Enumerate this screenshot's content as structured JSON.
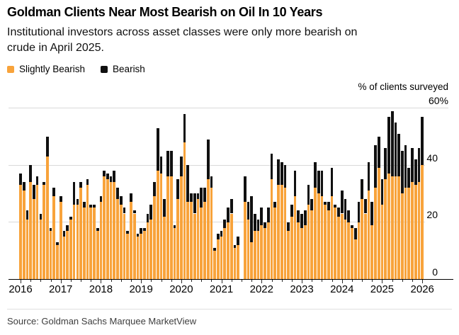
{
  "header": {
    "title": "Goldman Clients Near Most Bearish on Oil In 10 Years",
    "subtitle_line1": "Institutional investors across asset classes were only more bearish on",
    "subtitle_line2": "crude in April 2025."
  },
  "legend": {
    "items": [
      {
        "label": "Slightly Bearish",
        "color": "#F8A33B"
      },
      {
        "label": "Bearish",
        "color": "#101010"
      }
    ]
  },
  "axis": {
    "unit_label": "% of clients surveyed",
    "y_labels": [
      "60%",
      "40",
      "20",
      "0"
    ],
    "y_values": [
      60,
      40,
      20,
      0
    ],
    "years": [
      2016,
      2017,
      2018,
      2019,
      2020,
      2021,
      2022,
      2023,
      2024,
      2025,
      2026
    ]
  },
  "source": "Source: Goldman Sachs Marquee MarketView",
  "chart_data": {
    "type": "bar",
    "stacked": true,
    "title": "Goldman Clients Near Most Bearish on Oil In 10 Years",
    "unit": "% of clients surveyed",
    "ylim": [
      0,
      60
    ],
    "grid": true,
    "legend_position": "top-left",
    "start_month": "2016-01",
    "end_month": "2026-01",
    "missing_months": [
      "2021-07"
    ],
    "series": [
      {
        "name": "Slightly Bearish",
        "color": "#F8A33B",
        "values": [
          33,
          31,
          21,
          34,
          28,
          33,
          21,
          33,
          43,
          17,
          29,
          12,
          27,
          15,
          17,
          21,
          26,
          26,
          32,
          25,
          33,
          25,
          25,
          17,
          27,
          36,
          35,
          34,
          34,
          28,
          26,
          23,
          16,
          27,
          23,
          15,
          16,
          17,
          20,
          21,
          29,
          38,
          37,
          22,
          36,
          36,
          18,
          28,
          36,
          48,
          27,
          27,
          23,
          28,
          25,
          27,
          35,
          32,
          10,
          14,
          15,
          18,
          20,
          23,
          11,
          12,
          null,
          27,
          21,
          13,
          17,
          17,
          19,
          18,
          20,
          35,
          25,
          33,
          33,
          32,
          17,
          22,
          29,
          20,
          18,
          19,
          26,
          24,
          32,
          30,
          29,
          26,
          24,
          29,
          25,
          22,
          23,
          21,
          20,
          18,
          14,
          20,
          28,
          23,
          31,
          19,
          32,
          39,
          26,
          35,
          37,
          36,
          36,
          36,
          30,
          32,
          32,
          34,
          33,
          34,
          40
        ]
      },
      {
        "name": "Bearish",
        "color": "#101010",
        "values": [
          4,
          3,
          3,
          6,
          5,
          3,
          2,
          1,
          7,
          1,
          3,
          1,
          2,
          2,
          2,
          1,
          8,
          2,
          2,
          2,
          2,
          1,
          1,
          1,
          2,
          2,
          2,
          2,
          4,
          4,
          3,
          2,
          1,
          3,
          1,
          1,
          2,
          1,
          3,
          5,
          5,
          15,
          6,
          6,
          9,
          9,
          1,
          7,
          7,
          10,
          13,
          3,
          7,
          2,
          7,
          5,
          14,
          4,
          1,
          2,
          2,
          3,
          5,
          5,
          1,
          3,
          null,
          9,
          6,
          16,
          6,
          4,
          6,
          2,
          5,
          9,
          2,
          9,
          8,
          8,
          3,
          4,
          9,
          4,
          5,
          5,
          7,
          4,
          9,
          8,
          9,
          1,
          3,
          10,
          1,
          3,
          8,
          7,
          4,
          1,
          4,
          7,
          7,
          5,
          10,
          8,
          15,
          11,
          9,
          11,
          20,
          23,
          19,
          15,
          15,
          15,
          7,
          12,
          9,
          12,
          17
        ]
      }
    ]
  }
}
